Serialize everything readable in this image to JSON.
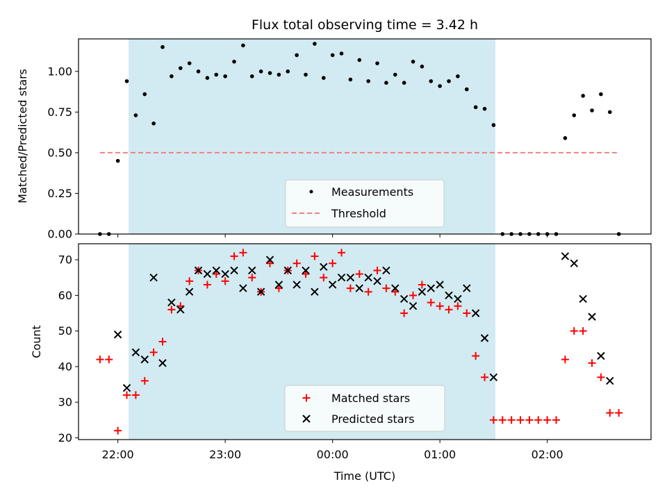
{
  "chart_data": [
    {
      "type": "scatter",
      "title": "Flux total observing time = 3.42 h",
      "xlabel": "",
      "ylabel": "Matched/Predicted stars",
      "x_unit": "UTC time",
      "ylim": [
        0,
        1.2
      ],
      "yticks": [
        "0.00",
        "0.25",
        "0.50",
        "0.75",
        "1.00"
      ],
      "shaded_interval": [
        "22:06",
        "01:31"
      ],
      "shade_color": "#add8e6",
      "legend_position": "bottom-center",
      "series": [
        {
          "name": "Measurements",
          "color": "#000000",
          "marker": "dot",
          "x": [
            "21:50",
            "21:55",
            "22:00",
            "22:05",
            "22:10",
            "22:15",
            "22:20",
            "22:25",
            "22:30",
            "22:35",
            "22:40",
            "22:45",
            "22:50",
            "22:55",
            "23:00",
            "23:05",
            "23:10",
            "23:15",
            "23:20",
            "23:25",
            "23:30",
            "23:35",
            "23:40",
            "23:45",
            "23:50",
            "23:55",
            "00:00",
            "00:05",
            "00:10",
            "00:15",
            "00:20",
            "00:25",
            "00:30",
            "00:35",
            "00:40",
            "00:45",
            "00:50",
            "00:55",
            "01:00",
            "01:05",
            "01:10",
            "01:15",
            "01:20",
            "01:25",
            "01:30",
            "01:35",
            "01:40",
            "01:45",
            "01:50",
            "01:55",
            "02:00",
            "02:05",
            "02:10",
            "02:15",
            "02:20",
            "02:25",
            "02:30",
            "02:35",
            "02:40"
          ],
          "y": [
            0.0,
            0.0,
            0.45,
            0.94,
            0.73,
            0.86,
            0.68,
            1.15,
            0.97,
            1.02,
            1.05,
            1.0,
            0.96,
            0.98,
            0.97,
            1.06,
            1.16,
            0.97,
            1.0,
            0.99,
            0.98,
            1.0,
            1.1,
            0.98,
            1.17,
            0.96,
            1.1,
            1.11,
            0.95,
            1.07,
            0.94,
            1.05,
            0.93,
            0.98,
            0.93,
            1.06,
            1.03,
            0.94,
            0.91,
            0.94,
            0.97,
            0.89,
            0.78,
            0.77,
            0.67,
            0.0,
            0.0,
            0.0,
            0.0,
            0.0,
            0.0,
            0.0,
            0.59,
            0.73,
            0.85,
            0.76,
            0.86,
            0.75,
            0.0
          ]
        },
        {
          "name": "Threshold",
          "color": "#f08080",
          "style": "dashed",
          "x": [
            "21:50",
            "02:40"
          ],
          "y": [
            0.5,
            0.5
          ]
        }
      ]
    },
    {
      "type": "scatter",
      "title": "",
      "xlabel": "Time (UTC)",
      "ylabel": "Count",
      "ylim": [
        19.5,
        74.5
      ],
      "yticks": [
        "20",
        "30",
        "40",
        "50",
        "60",
        "70"
      ],
      "xticks": [
        "22:00",
        "23:00",
        "00:00",
        "01:00",
        "02:00"
      ],
      "shaded_interval": [
        "22:06",
        "01:31"
      ],
      "shade_color": "#add8e6",
      "legend_position": "bottom-center",
      "series": [
        {
          "name": "Matched stars",
          "color": "#ff0000",
          "marker": "plus",
          "x": [
            "21:50",
            "21:55",
            "22:00",
            "22:05",
            "22:10",
            "22:15",
            "22:20",
            "22:25",
            "22:30",
            "22:35",
            "22:40",
            "22:45",
            "22:50",
            "22:55",
            "23:00",
            "23:05",
            "23:10",
            "23:15",
            "23:20",
            "23:25",
            "23:30",
            "23:35",
            "23:40",
            "23:45",
            "23:50",
            "23:55",
            "00:00",
            "00:05",
            "00:10",
            "00:15",
            "00:20",
            "00:25",
            "00:30",
            "00:35",
            "00:40",
            "00:45",
            "00:50",
            "00:55",
            "01:00",
            "01:05",
            "01:10",
            "01:15",
            "01:20",
            "01:25",
            "01:30",
            "01:35",
            "01:40",
            "01:45",
            "01:50",
            "01:55",
            "02:00",
            "02:05",
            "02:10",
            "02:15",
            "02:20",
            "02:25",
            "02:30",
            "02:35",
            "02:40"
          ],
          "y": [
            42,
            42,
            22,
            32,
            32,
            36,
            44,
            47,
            56,
            57,
            64,
            67,
            63,
            66,
            64,
            71,
            72,
            65,
            61,
            69,
            62,
            67,
            69,
            66,
            71,
            65,
            69,
            72,
            62,
            66,
            61,
            67,
            62,
            61,
            55,
            60,
            63,
            58,
            57,
            56,
            57,
            55,
            43,
            37,
            25,
            25,
            25,
            25,
            25,
            25,
            25,
            25,
            42,
            50,
            50,
            41,
            37,
            27,
            27
          ]
        },
        {
          "name": "Predicted stars",
          "color": "#000000",
          "marker": "x",
          "x": [
            "22:00",
            "22:05",
            "22:10",
            "22:15",
            "22:20",
            "22:25",
            "22:30",
            "22:35",
            "22:40",
            "22:45",
            "22:50",
            "22:55",
            "23:00",
            "23:05",
            "23:10",
            "23:15",
            "23:20",
            "23:25",
            "23:30",
            "23:35",
            "23:40",
            "23:45",
            "23:50",
            "23:55",
            "00:00",
            "00:05",
            "00:10",
            "00:15",
            "00:20",
            "00:25",
            "00:30",
            "00:35",
            "00:40",
            "00:45",
            "00:50",
            "00:55",
            "01:00",
            "01:05",
            "01:10",
            "01:15",
            "01:20",
            "01:25",
            "01:30",
            "02:10",
            "02:15",
            "02:20",
            "02:25",
            "02:30",
            "02:35"
          ],
          "y": [
            49,
            34,
            44,
            42,
            65,
            41,
            58,
            56,
            61,
            67,
            66,
            67,
            66,
            67,
            62,
            67,
            61,
            70,
            63,
            67,
            63,
            67,
            61,
            68,
            63,
            65,
            65,
            62,
            65,
            64,
            67,
            62,
            59,
            57,
            61,
            62,
            63,
            60,
            59,
            62,
            55,
            48,
            37,
            71,
            69,
            59,
            54,
            43,
            36
          ]
        }
      ]
    }
  ]
}
